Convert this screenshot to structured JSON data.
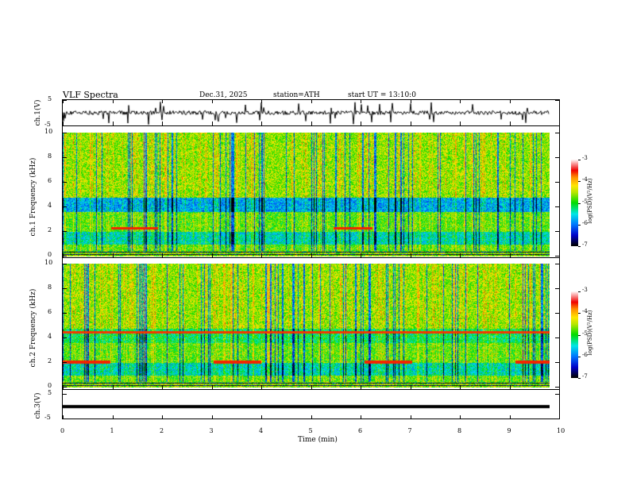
{
  "header": {
    "title": "VLF  Spectra",
    "date": "Dec.31, 2025",
    "station": "station=ATH",
    "start": "start  UT  =    13:10:0"
  },
  "chart_data": {
    "type": "heatmap",
    "title": "VLF Spectra",
    "xlabel": "Time (min)",
    "xlim": [
      0,
      10
    ],
    "xticks": [
      "0",
      "1",
      "2",
      "3",
      "4",
      "5",
      "6",
      "7",
      "8",
      "9",
      "10"
    ],
    "data_end_min": 9.8,
    "panels": [
      {
        "name": "ch1-waveform",
        "ylabel": "ch.1(V)",
        "ylim": [
          -5,
          5
        ],
        "yticks": [
          "5",
          "-5"
        ],
        "type": "line"
      },
      {
        "name": "ch1-spectrogram",
        "ylabel": "ch.1 Frequency (kHz)",
        "ylim": [
          0,
          10
        ],
        "yticks": [
          "10",
          "8",
          "6",
          "4",
          "2",
          "0"
        ],
        "type": "heatmap",
        "colorbar": {
          "label": "log(PSD)(V²/Hz)",
          "range": [
            -7,
            -3
          ],
          "ticks": [
            "-3",
            "-4",
            "-5",
            "-6",
            "-7"
          ]
        }
      },
      {
        "name": "ch2-spectrogram",
        "ylabel": "ch.2 Frequency (kHz)",
        "ylim": [
          0,
          10
        ],
        "yticks": [
          "10",
          "8",
          "6",
          "4",
          "2",
          "0"
        ],
        "type": "heatmap",
        "colorbar": {
          "label": "log(PSD)(V²/Hz)",
          "range": [
            -7,
            -3
          ],
          "ticks": [
            "-3",
            "-4",
            "-5",
            "-6",
            "-7"
          ]
        }
      },
      {
        "name": "ch3-waveform",
        "ylabel": "ch.3(V)",
        "ylim": [
          -5,
          5
        ],
        "yticks": [
          "5",
          "-5"
        ],
        "type": "line"
      }
    ]
  }
}
